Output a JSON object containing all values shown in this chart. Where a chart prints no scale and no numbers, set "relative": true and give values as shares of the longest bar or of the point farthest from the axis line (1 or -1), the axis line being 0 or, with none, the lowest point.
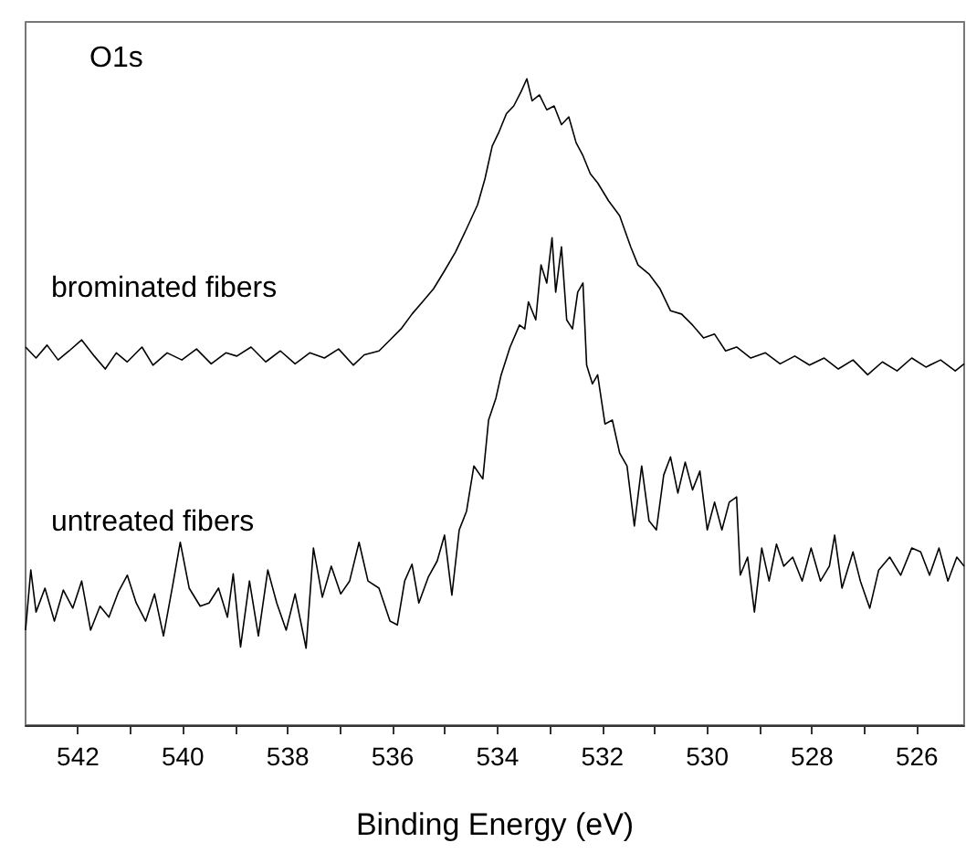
{
  "chart_data": {
    "type": "line",
    "relative": true,
    "xlabel": "Binding Energy (eV)",
    "annotations": [
      "O1s"
    ],
    "xlim": [
      543,
      525.1
    ],
    "xticks": [
      542,
      {
        "value": 541,
        "label": null
      },
      540,
      {
        "value": 539,
        "label": null
      },
      538,
      {
        "value": 537,
        "label": null
      },
      536,
      {
        "value": 535,
        "label": null
      },
      534,
      {
        "value": 533,
        "label": null
      },
      532,
      {
        "value": 531,
        "label": null
      },
      530,
      {
        "value": 529,
        "label": null
      },
      528,
      {
        "value": 527,
        "label": null
      },
      526
    ],
    "grid": false,
    "legend": false,
    "marker": "none",
    "line_style": "solid",
    "series": [
      {
        "name": "brominated fibers",
        "color": "#000000",
        "x": [
          543.0,
          542.8,
          542.59,
          542.38,
          542.17,
          541.93,
          541.69,
          541.48,
          541.27,
          541.06,
          540.78,
          540.57,
          540.3,
          540.02,
          539.74,
          539.46,
          539.18,
          538.97,
          538.7,
          538.42,
          538.14,
          537.86,
          537.58,
          537.3,
          537.03,
          536.75,
          536.54,
          536.26,
          536.05,
          535.84,
          535.63,
          535.43,
          535.22,
          535.01,
          534.8,
          534.59,
          534.38,
          534.24,
          534.1,
          533.97,
          533.83,
          533.69,
          533.55,
          533.44,
          533.34,
          533.2,
          533.06,
          532.92,
          532.78,
          532.64,
          532.5,
          532.37,
          532.23,
          532.09,
          531.88,
          531.67,
          531.46,
          531.32,
          531.11,
          530.9,
          530.7,
          530.49,
          530.28,
          530.07,
          529.86,
          529.65,
          529.44,
          529.17,
          528.89,
          528.61,
          528.33,
          528.05,
          527.77,
          527.5,
          527.22,
          526.94,
          526.66,
          526.38,
          526.1,
          525.83,
          525.55,
          525.27,
          525.1
        ],
        "values": [
          0.585,
          0.568,
          0.588,
          0.565,
          0.579,
          0.596,
          0.571,
          0.551,
          0.576,
          0.562,
          0.585,
          0.557,
          0.576,
          0.565,
          0.582,
          0.559,
          0.576,
          0.571,
          0.585,
          0.562,
          0.579,
          0.559,
          0.576,
          0.568,
          0.582,
          0.557,
          0.573,
          0.579,
          0.596,
          0.613,
          0.636,
          0.655,
          0.675,
          0.703,
          0.732,
          0.768,
          0.805,
          0.845,
          0.896,
          0.918,
          0.946,
          0.958,
          0.98,
          1.0,
          0.966,
          0.975,
          0.952,
          0.958,
          0.929,
          0.941,
          0.901,
          0.881,
          0.853,
          0.839,
          0.811,
          0.788,
          0.74,
          0.712,
          0.698,
          0.675,
          0.641,
          0.636,
          0.619,
          0.599,
          0.605,
          0.579,
          0.585,
          0.568,
          0.576,
          0.559,
          0.571,
          0.557,
          0.568,
          0.551,
          0.565,
          0.542,
          0.562,
          0.548,
          0.568,
          0.554,
          0.565,
          0.548,
          0.559
        ]
      },
      {
        "name": "untreated fibers",
        "color": "#000000",
        "x": [
          543.0,
          542.9,
          542.8,
          542.63,
          542.45,
          542.28,
          542.1,
          541.93,
          541.76,
          541.58,
          541.41,
          541.23,
          541.06,
          540.89,
          540.71,
          540.54,
          540.37,
          540.19,
          540.05,
          539.88,
          539.67,
          539.5,
          539.32,
          539.15,
          539.04,
          538.9,
          538.73,
          538.56,
          538.38,
          538.21,
          538.03,
          537.86,
          537.65,
          537.51,
          537.34,
          537.17,
          536.99,
          536.82,
          536.64,
          536.47,
          536.26,
          536.05,
          535.91,
          535.77,
          535.63,
          535.5,
          535.32,
          535.15,
          535.01,
          534.87,
          534.73,
          534.59,
          534.45,
          534.28,
          534.17,
          534.03,
          533.93,
          533.76,
          533.58,
          533.48,
          533.41,
          533.27,
          533.17,
          533.06,
          532.96,
          532.89,
          532.78,
          532.68,
          532.57,
          532.47,
          532.37,
          532.3,
          532.19,
          532.09,
          531.95,
          531.81,
          531.67,
          531.53,
          531.39,
          531.25,
          531.11,
          530.97,
          530.83,
          530.7,
          530.56,
          530.42,
          530.28,
          530.14,
          530.0,
          529.86,
          529.72,
          529.58,
          529.44,
          529.37,
          529.23,
          529.1,
          528.96,
          528.82,
          528.68,
          528.54,
          528.37,
          528.19,
          528.02,
          527.84,
          527.67,
          527.57,
          527.43,
          527.22,
          527.08,
          526.9,
          526.73,
          526.52,
          526.31,
          526.1,
          525.93,
          525.76,
          525.58,
          525.41,
          525.24,
          525.1
        ],
        "values": [
          0.147,
          0.24,
          0.175,
          0.212,
          0.161,
          0.209,
          0.181,
          0.223,
          0.147,
          0.184,
          0.167,
          0.206,
          0.232,
          0.189,
          0.161,
          0.203,
          0.138,
          0.218,
          0.283,
          0.212,
          0.184,
          0.189,
          0.212,
          0.167,
          0.234,
          0.121,
          0.223,
          0.138,
          0.24,
          0.189,
          0.147,
          0.203,
          0.119,
          0.274,
          0.198,
          0.246,
          0.203,
          0.223,
          0.283,
          0.223,
          0.212,
          0.161,
          0.155,
          0.223,
          0.249,
          0.189,
          0.229,
          0.254,
          0.294,
          0.201,
          0.302,
          0.331,
          0.401,
          0.381,
          0.472,
          0.506,
          0.542,
          0.585,
          0.619,
          0.613,
          0.655,
          0.627,
          0.712,
          0.684,
          0.754,
          0.67,
          0.74,
          0.627,
          0.613,
          0.67,
          0.684,
          0.557,
          0.528,
          0.542,
          0.466,
          0.472,
          0.421,
          0.401,
          0.308,
          0.401,
          0.316,
          0.302,
          0.387,
          0.415,
          0.359,
          0.407,
          0.364,
          0.393,
          0.302,
          0.345,
          0.302,
          0.345,
          0.353,
          0.232,
          0.26,
          0.175,
          0.274,
          0.223,
          0.28,
          0.246,
          0.26,
          0.223,
          0.274,
          0.223,
          0.246,
          0.294,
          0.212,
          0.268,
          0.223,
          0.181,
          0.24,
          0.26,
          0.232,
          0.274,
          0.268,
          0.232,
          0.274,
          0.223,
          0.26,
          0.246
        ]
      }
    ]
  }
}
